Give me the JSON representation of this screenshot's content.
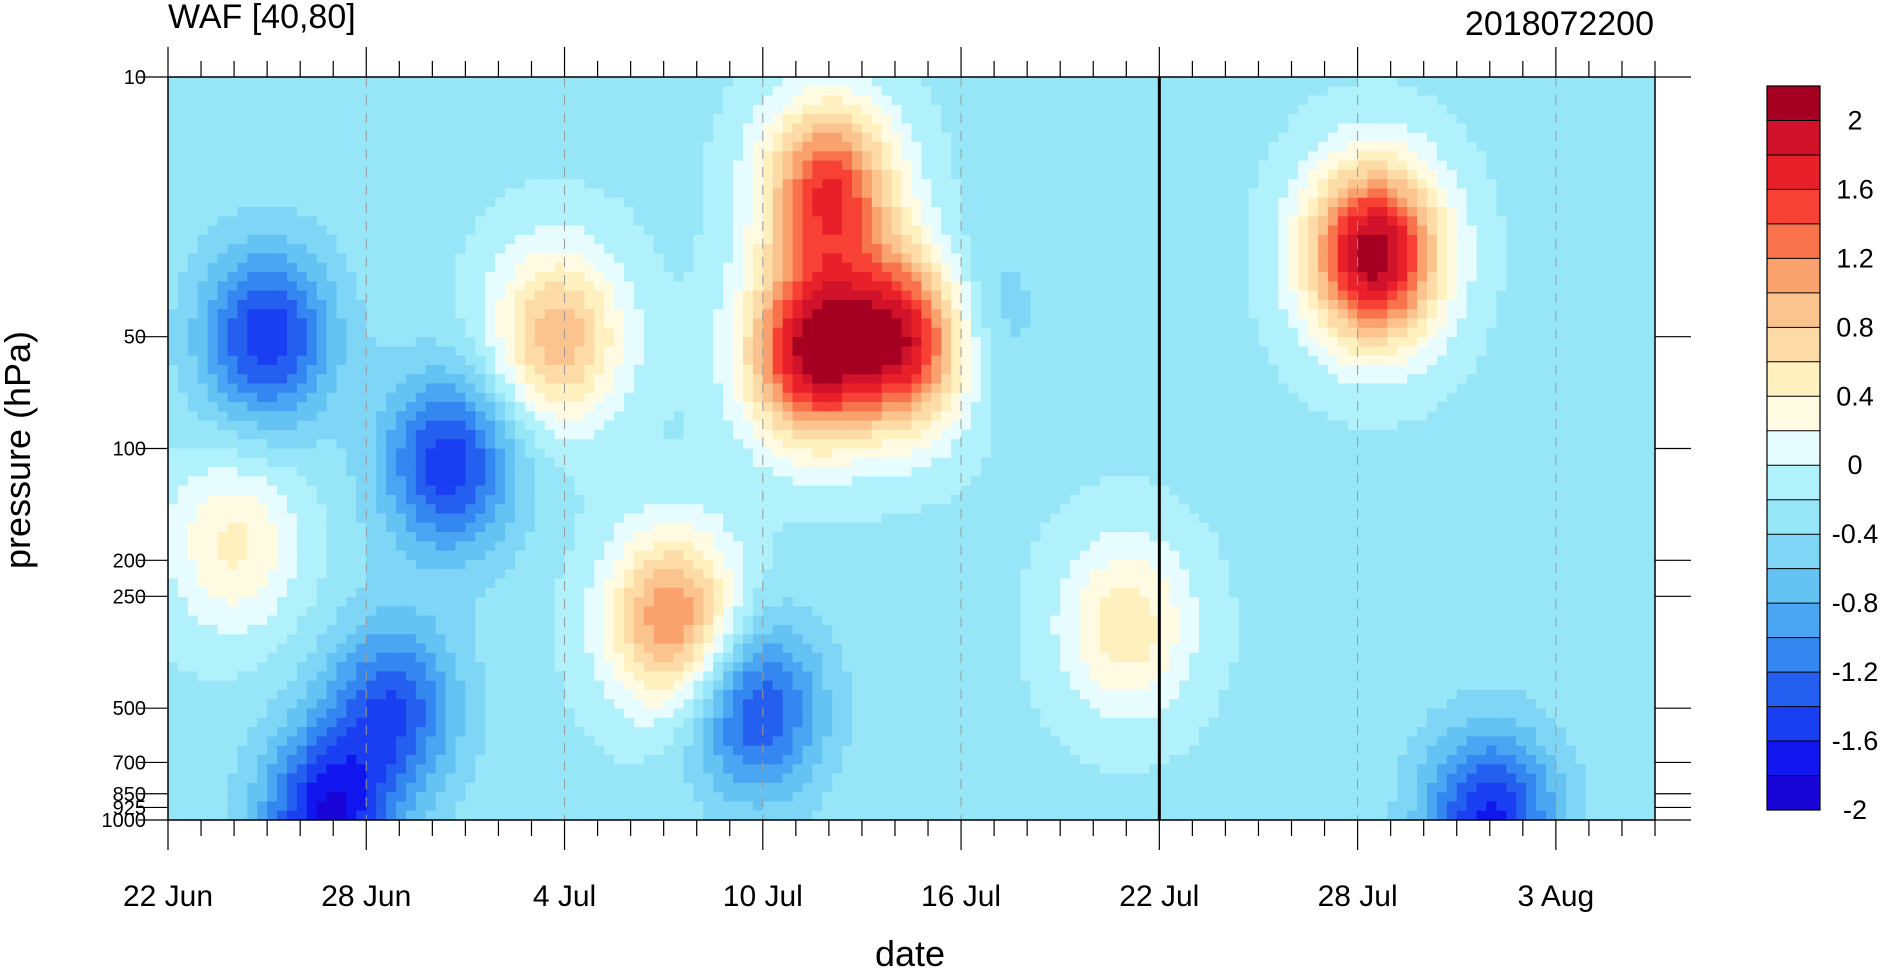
{
  "chart_data": {
    "type": "heatmap",
    "subtype": "filled-contour (time-pressure cross section)",
    "title": "WAF [40,80]",
    "subtitle_right": "2018072200",
    "xlabel": "date",
    "ylabel": "pressure (hPa)",
    "x_ticks": [
      "22 Jun",
      "28 Jun",
      "4 Jul",
      "10 Jul",
      "16 Jul",
      "22 Jul",
      "28 Jul",
      "3 Aug"
    ],
    "x_tick_days": [
      0,
      6,
      12,
      18,
      24,
      30,
      36,
      42
    ],
    "x_range_days": [
      0,
      45
    ],
    "y_ticks": [
      "10",
      "50",
      "100",
      "200",
      "250",
      "500",
      "700",
      "850",
      "925",
      "1000"
    ],
    "y_tick_values": [
      10,
      50,
      100,
      200,
      250,
      500,
      700,
      850,
      925,
      1000
    ],
    "y_scale": "log",
    "y_reversed": true,
    "y_range": [
      10,
      1000
    ],
    "vertical_marker_date": "22 Jul",
    "colorbar": {
      "labels": [
        "2",
        "1.6",
        "1.2",
        "0.8",
        "0.4",
        "0",
        "-0.4",
        "-0.8",
        "-1.2",
        "-1.6",
        "-2"
      ],
      "label_values": [
        2,
        1.6,
        1.2,
        0.8,
        0.4,
        0,
        -0.4,
        -0.8,
        -1.2,
        -1.6,
        -2
      ],
      "levels": [
        -2.2,
        -2.0,
        -1.8,
        -1.6,
        -1.4,
        -1.2,
        -1.0,
        -0.8,
        -0.6,
        -0.4,
        -0.2,
        0,
        0.2,
        0.4,
        0.6,
        0.8,
        1.0,
        1.2,
        1.4,
        1.6,
        1.8,
        2.0
      ],
      "colors": [
        "#a50021",
        "#d0122a",
        "#e8202a",
        "#f74135",
        "#f8734c",
        "#f9a26e",
        "#fbc48e",
        "#fddba6",
        "#fff0bf",
        "#fffbe3",
        "#e6fcfe",
        "#b0f1fb",
        "#97e6f8",
        "#7ed5f5",
        "#64c3f3",
        "#4aa5f2",
        "#3487f0",
        "#255ff0",
        "#1a3ef2",
        "#1116ef",
        "#1805d6"
      ]
    },
    "contour_features": [
      {
        "t": 36.5,
        "p": 30,
        "value": 2.4
      },
      {
        "t": 22.5,
        "p": 50,
        "value": 2.3
      },
      {
        "t": 19.5,
        "p": 55,
        "value": 2.2
      },
      {
        "t": 20.0,
        "p": 20,
        "value": 1.8
      },
      {
        "t": 15.3,
        "p": 290,
        "value": 1.5
      },
      {
        "t": 11.8,
        "p": 50,
        "value": 1.2
      },
      {
        "t": 2.0,
        "p": 180,
        "value": 0.7
      },
      {
        "t": 29.0,
        "p": 300,
        "value": 0.8
      },
      {
        "t": 40.0,
        "p": 1000,
        "value": -1.4
      },
      {
        "t": 4.8,
        "p": 1000,
        "value": -1.5
      },
      {
        "t": 3.0,
        "p": 50,
        "value": -1.3
      },
      {
        "t": 8.5,
        "p": 110,
        "value": -1.3
      },
      {
        "t": 17.8,
        "p": 500,
        "value": -1.2
      },
      {
        "t": 6.8,
        "p": 500,
        "value": -1.1
      },
      {
        "t": 24.0,
        "p": 45,
        "value": -0.7
      }
    ]
  }
}
